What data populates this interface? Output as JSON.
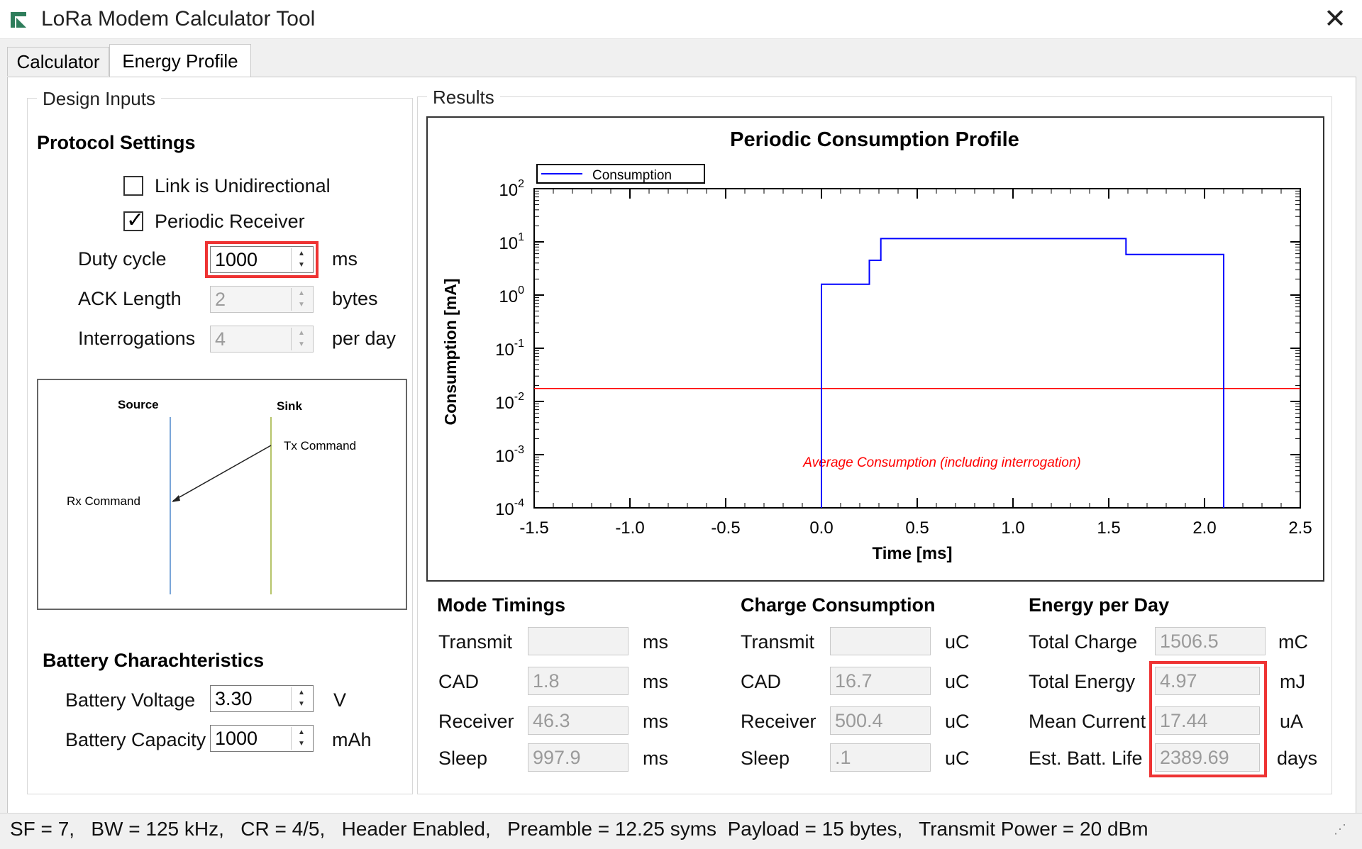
{
  "window": {
    "title": "LoRa Modem Calculator Tool"
  },
  "tabs": {
    "calculator": "Calculator",
    "energy_profile": "Energy Profile"
  },
  "design_inputs": {
    "group_label": "Design Inputs",
    "protocol": {
      "heading": "Protocol Settings",
      "link_unidirectional": {
        "label": "Link is Unidirectional",
        "checked": false
      },
      "periodic_receiver": {
        "label": "Periodic Receiver",
        "checked": true
      },
      "duty_cycle": {
        "label": "Duty cycle",
        "value": "1000",
        "unit": "ms"
      },
      "ack_length": {
        "label": "ACK Length",
        "value": "2",
        "unit": "bytes"
      },
      "interrogations": {
        "label": "Interrogations",
        "value": "4",
        "unit": "per day"
      }
    },
    "diagram": {
      "source": "Source",
      "sink": "Sink",
      "tx_command": "Tx Command",
      "rx_command": "Rx Command"
    },
    "battery": {
      "heading": "Battery Charachteristics",
      "voltage": {
        "label": "Battery Voltage",
        "value": "3.30",
        "unit": "V"
      },
      "capacity": {
        "label": "Battery Capacity",
        "value": "1000",
        "unit": "mAh"
      }
    }
  },
  "results": {
    "group_label": "Results",
    "mode_timings": {
      "heading": "Mode Timings",
      "rows": [
        {
          "label": "Transmit",
          "value": "",
          "unit": "ms"
        },
        {
          "label": "CAD",
          "value": "1.8",
          "unit": "ms"
        },
        {
          "label": "Receiver",
          "value": "46.3",
          "unit": "ms"
        },
        {
          "label": "Sleep",
          "value": "997.9",
          "unit": "ms"
        }
      ]
    },
    "charge_consumption": {
      "heading": "Charge Consumption",
      "rows": [
        {
          "label": "Transmit",
          "value": "",
          "unit": "uC"
        },
        {
          "label": "CAD",
          "value": "16.7",
          "unit": "uC"
        },
        {
          "label": "Receiver",
          "value": "500.4",
          "unit": "uC"
        },
        {
          "label": "Sleep",
          "value": ".1",
          "unit": "uC"
        }
      ]
    },
    "energy_per_day": {
      "heading": "Energy per Day",
      "rows": [
        {
          "label": "Total Charge",
          "value": "1506.5",
          "unit": "mC"
        },
        {
          "label": "Total Energy",
          "value": "4.97",
          "unit": "mJ"
        },
        {
          "label": "Mean Current",
          "value": "17.44",
          "unit": "uA"
        },
        {
          "label": "Est. Batt. Life",
          "value": "2389.69",
          "unit": "days"
        }
      ]
    }
  },
  "chart_data": {
    "type": "line",
    "title": "Periodic Consumption Profile",
    "xlabel": "Time [ms]",
    "ylabel": "Consumption [mA]",
    "yscale": "log",
    "xlim": [
      -1.5,
      2.5
    ],
    "ylim": [
      0.0001,
      100
    ],
    "x_ticks": [
      "-1.5",
      "-1.0",
      "-0.5",
      "0.0",
      "0.5",
      "1.0",
      "1.5",
      "2.0",
      "2.5"
    ],
    "y_ticks": [
      {
        "base": "10",
        "exp": "2"
      },
      {
        "base": "10",
        "exp": "1"
      },
      {
        "base": "10",
        "exp": "0"
      },
      {
        "base": "10",
        "exp": "-1"
      },
      {
        "base": "10",
        "exp": "-2"
      },
      {
        "base": "10",
        "exp": "-3"
      },
      {
        "base": "10",
        "exp": "-4"
      }
    ],
    "legend": {
      "label": "Consumption",
      "placement": "top-left"
    },
    "series": [
      {
        "name": "Consumption",
        "color": "#0000ff",
        "points": [
          [
            0.0,
            0.0001
          ],
          [
            0.0,
            1.6
          ],
          [
            0.25,
            1.6
          ],
          [
            0.25,
            4.5
          ],
          [
            0.31,
            4.5
          ],
          [
            0.31,
            11.5
          ],
          [
            1.59,
            11.5
          ],
          [
            1.59,
            5.8
          ],
          [
            2.1,
            5.8
          ],
          [
            2.1,
            0.0001
          ]
        ]
      }
    ],
    "average_line": {
      "value": 0.0175,
      "color": "#ff0000",
      "label": "Average Consumption (including interrogation)"
    },
    "grid": false
  },
  "status": {
    "text": "SF = 7,   BW = 125 kHz,   CR = 4/5,   Header Enabled,   Preamble = 12.25 syms  Payload = 15 bytes,   Transmit Power = 20 dBm"
  }
}
